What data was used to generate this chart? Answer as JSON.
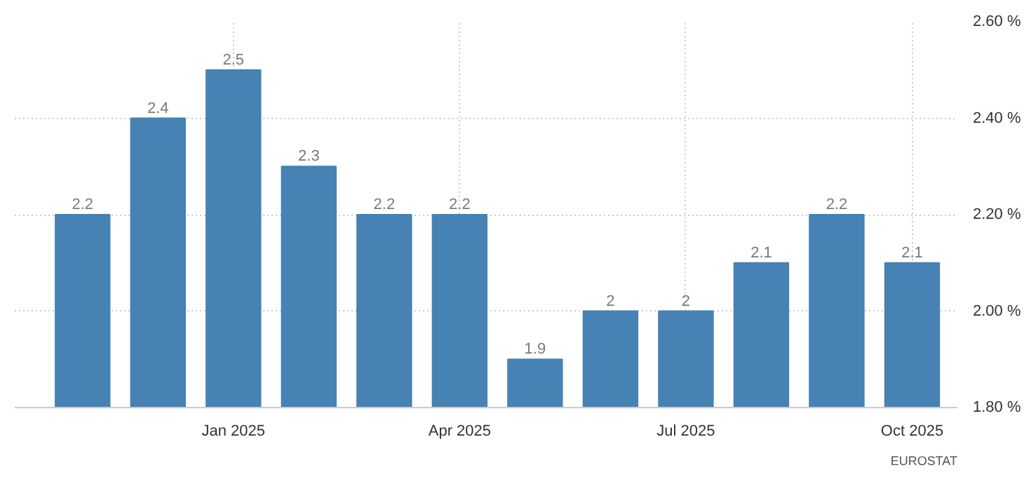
{
  "chart_data": {
    "type": "bar",
    "categories": [
      null,
      null,
      "Jan 2025",
      null,
      null,
      "Apr 2025",
      null,
      null,
      "Jul 2025",
      null,
      null,
      "Oct 2025"
    ],
    "values": [
      2.2,
      2.4,
      2.5,
      2.3,
      2.2,
      2.2,
      1.9,
      2.0,
      2.0,
      2.1,
      2.2,
      2.1
    ],
    "value_labels": [
      "2.2",
      "2.4",
      "2.5",
      "2.3",
      "2.2",
      "2.2",
      "1.9",
      "2",
      "2",
      "2.1",
      "2.2",
      "2.1"
    ],
    "color": "#4682b4",
    "ylim": [
      1.8,
      2.6
    ],
    "yticks": [
      {
        "value": 1.8,
        "label": "1.80 %"
      },
      {
        "value": 2.0,
        "label": "2.00 %"
      },
      {
        "value": 2.2,
        "label": "2.20 %"
      },
      {
        "value": 2.4,
        "label": "2.40 %"
      },
      {
        "value": 2.6,
        "label": "2.60 %"
      }
    ],
    "grid": true,
    "annotations": [
      "EUROSTAT"
    ]
  }
}
